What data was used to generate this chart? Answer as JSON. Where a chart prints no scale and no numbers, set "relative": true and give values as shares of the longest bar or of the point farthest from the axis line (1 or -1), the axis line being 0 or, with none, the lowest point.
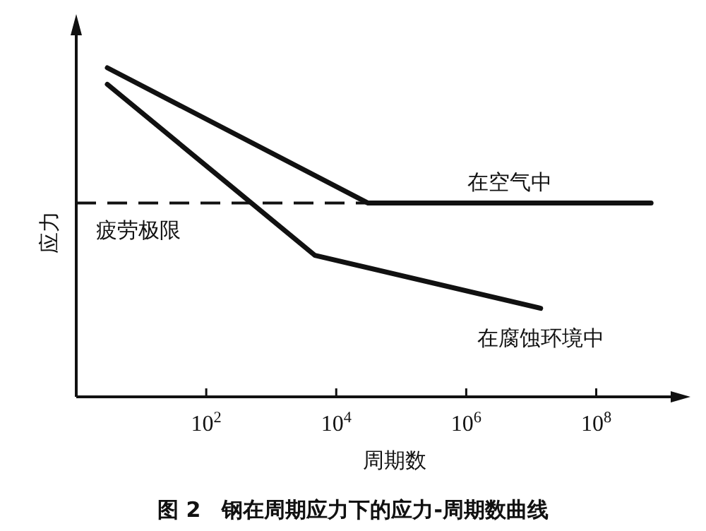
{
  "chart_data": {
    "type": "line",
    "title": "图 2　钢在周期应力下的应力-周期数曲线",
    "xlabel": "周期数",
    "ylabel": "应力",
    "relative": true,
    "log": "x",
    "xlim": [
      1,
      1400000000
    ],
    "xticks": [
      {
        "value": 100,
        "label": "10$^{2}$"
      },
      {
        "value": 10000,
        "label": "10$^{4}$"
      },
      {
        "value": 1000000,
        "label": "10$^{6}$"
      },
      {
        "value": 100000000,
        "label": "10$^{8}$"
      }
    ],
    "tick_labels": "x",
    "line_style": "solid",
    "series": [
      {
        "name": "在空气中",
        "color": "#111111",
        "x": [
          3,
          31000,
          700000000
        ],
        "values": [
          1,
          0.589,
          0.589
        ]
      },
      {
        "name": "在腐蚀环境中",
        "color": "#111111",
        "x": [
          3,
          4700,
          14000000
        ],
        "values": [
          0.95,
          0.43,
          0.269
        ]
      }
    ],
    "ref_lines": [
      {
        "axis": "y",
        "value": 0.589,
        "label": "疲劳极限",
        "line_style": "dashed",
        "color": "#111111"
      }
    ]
  }
}
